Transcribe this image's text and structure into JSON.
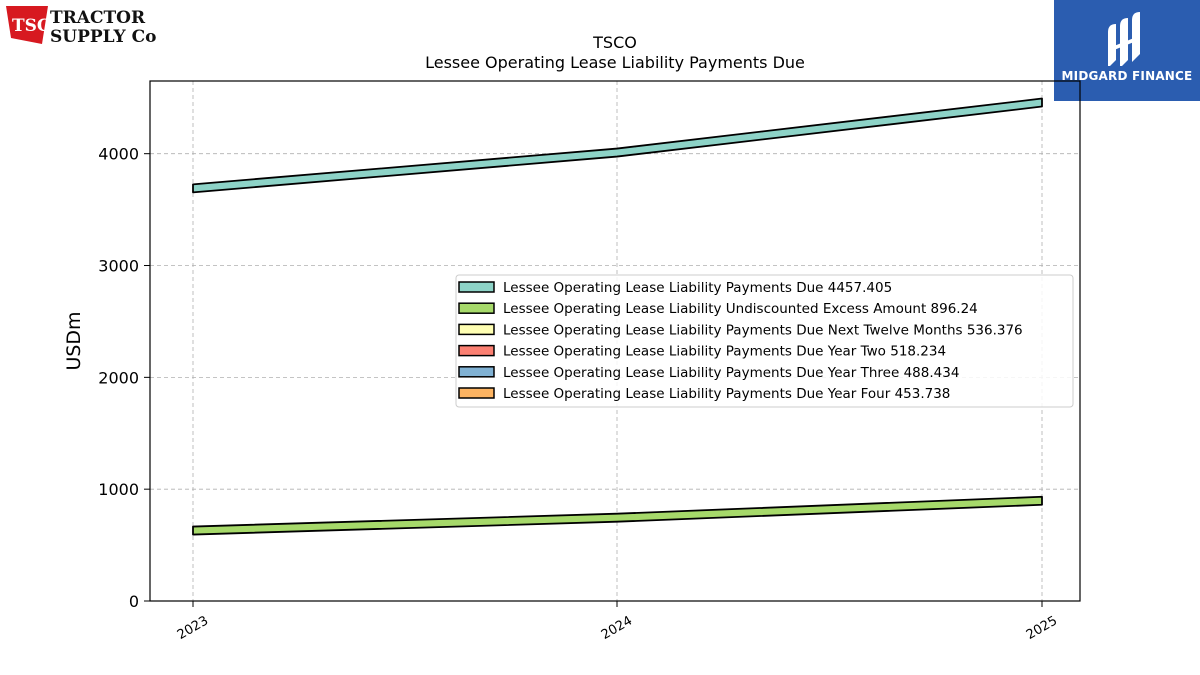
{
  "brand": {
    "company_logo": {
      "mark_text": "TSC",
      "line1": "TRACTOR",
      "line2": "SUPPLY Co",
      "name": "tractor-supply-logo"
    },
    "publisher_logo": {
      "text": "MIDGARD FINANCE",
      "name": "midgard-finance-logo",
      "color": "#2b5db0"
    }
  },
  "chart_data": {
    "type": "area",
    "title": "TSCO",
    "subtitle": "Lessee Operating Lease Liability Payments Due",
    "xlabel": "",
    "ylabel": "USDm",
    "categories": [
      "2023",
      "2024",
      "2025"
    ],
    "ylim": [
      0,
      4650
    ],
    "yticks": [
      0,
      1000,
      2000,
      3000,
      4000
    ],
    "grid": true,
    "legend_position": "center-right",
    "series": [
      {
        "name": "Lessee Operating Lease Liability Payments Due",
        "legend_value": "4457.405",
        "color": "#8dd3c7",
        "values": [
          3690,
          4010,
          4457.405
        ]
      },
      {
        "name": "Lessee Operating Lease Liability Undiscounted Excess Amount",
        "legend_value": "896.24",
        "color": "#a6d96a",
        "values": [
          630,
          745,
          896.24
        ]
      },
      {
        "name": "Lessee Operating Lease Liability Payments Due Next Twelve Months",
        "legend_value": "536.376",
        "color": "#ffffb3",
        "values": [
          null,
          null,
          null
        ]
      },
      {
        "name": "Lessee Operating Lease Liability Payments Due Year Two",
        "legend_value": "518.234",
        "color": "#fb8072",
        "values": [
          null,
          null,
          null
        ]
      },
      {
        "name": "Lessee Operating Lease Liability Payments Due Year Three",
        "legend_value": "488.434",
        "color": "#80b1d3",
        "values": [
          null,
          null,
          null
        ]
      },
      {
        "name": "Lessee Operating Lease Liability Payments Due Year Four",
        "legend_value": "453.738",
        "color": "#fdb462",
        "values": [
          null,
          null,
          null
        ]
      }
    ]
  }
}
